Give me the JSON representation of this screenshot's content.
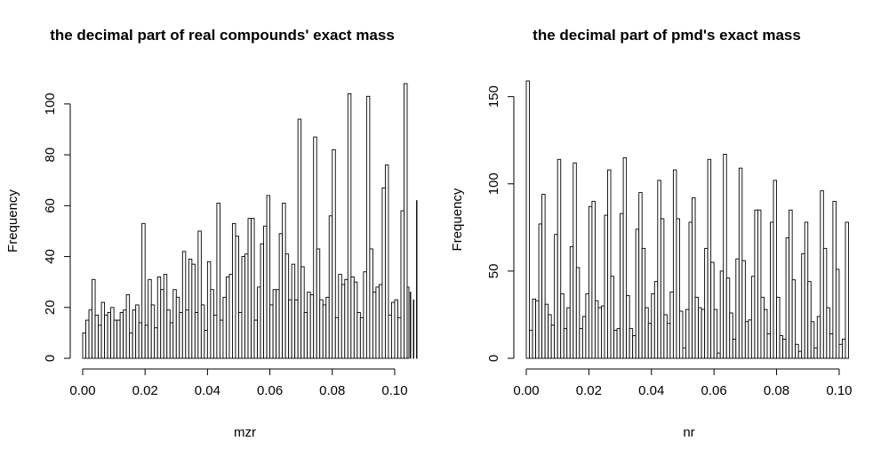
{
  "chart_data": [
    {
      "type": "bar",
      "title": "the decimal part of real compounds' exact mass",
      "xlabel": "mzr",
      "ylabel": "Frequency",
      "xlim": [
        0,
        0.104
      ],
      "ylim": [
        0,
        108
      ],
      "x_ticks": [
        "0.00",
        "0.02",
        "0.04",
        "0.06",
        "0.08",
        "0.10"
      ],
      "y_ticks": [
        "0",
        "20",
        "40",
        "60",
        "80",
        "100"
      ],
      "bin_width": 0.001,
      "bin_start": 0,
      "values": [
        10,
        15,
        19,
        31,
        17,
        13,
        22,
        17,
        18,
        20,
        15,
        15,
        18,
        19,
        25,
        10,
        19,
        21,
        14,
        53,
        13,
        31,
        21,
        12,
        32,
        27,
        33,
        19,
        14,
        27,
        24,
        18,
        42,
        19,
        39,
        37,
        18,
        50,
        21,
        11,
        38,
        27,
        17,
        61,
        15,
        24,
        32,
        33,
        53,
        48,
        18,
        40,
        41,
        55,
        55,
        15,
        28,
        45,
        52,
        64,
        21,
        27,
        27,
        49,
        61,
        41,
        23,
        37,
        23,
        94,
        36,
        18,
        26,
        25,
        87,
        43,
        23,
        21,
        24,
        56,
        82,
        16,
        33,
        29,
        31,
        104,
        32,
        30,
        18,
        16,
        34,
        103,
        43,
        26,
        28,
        29,
        67,
        76,
        17,
        22,
        23,
        16,
        58,
        108,
        28,
        26,
        23,
        62
      ]
    },
    {
      "type": "bar",
      "title": "the decimal part of pmd's exact mass",
      "xlabel": "nr",
      "ylabel": "Frequency",
      "xlim": [
        0,
        0.104
      ],
      "ylim": [
        0,
        159
      ],
      "x_ticks": [
        "0.00",
        "0.02",
        "0.04",
        "0.06",
        "0.08",
        "0.10"
      ],
      "y_ticks": [
        "0",
        "50",
        "100",
        "150"
      ],
      "bin_width": 0.001,
      "bin_start": 0,
      "values": [
        159,
        16,
        34,
        33,
        77,
        94,
        31,
        25,
        19,
        71,
        114,
        37,
        17,
        29,
        64,
        112,
        52,
        17,
        24,
        37,
        87,
        90,
        33,
        29,
        30,
        82,
        108,
        47,
        16,
        17,
        83,
        115,
        36,
        17,
        13,
        74,
        95,
        63,
        29,
        20,
        37,
        44,
        102,
        80,
        25,
        20,
        38,
        108,
        80,
        27,
        6,
        28,
        78,
        92,
        35,
        29,
        28,
        63,
        114,
        55,
        28,
        3,
        50,
        117,
        46,
        26,
        11,
        57,
        109,
        56,
        21,
        22,
        47,
        85,
        85,
        35,
        28,
        14,
        78,
        102,
        35,
        13,
        11,
        69,
        85,
        45,
        8,
        4,
        60,
        78,
        44,
        21,
        6,
        24,
        96,
        63,
        29,
        14,
        90,
        51,
        8,
        11,
        78
      ]
    }
  ]
}
